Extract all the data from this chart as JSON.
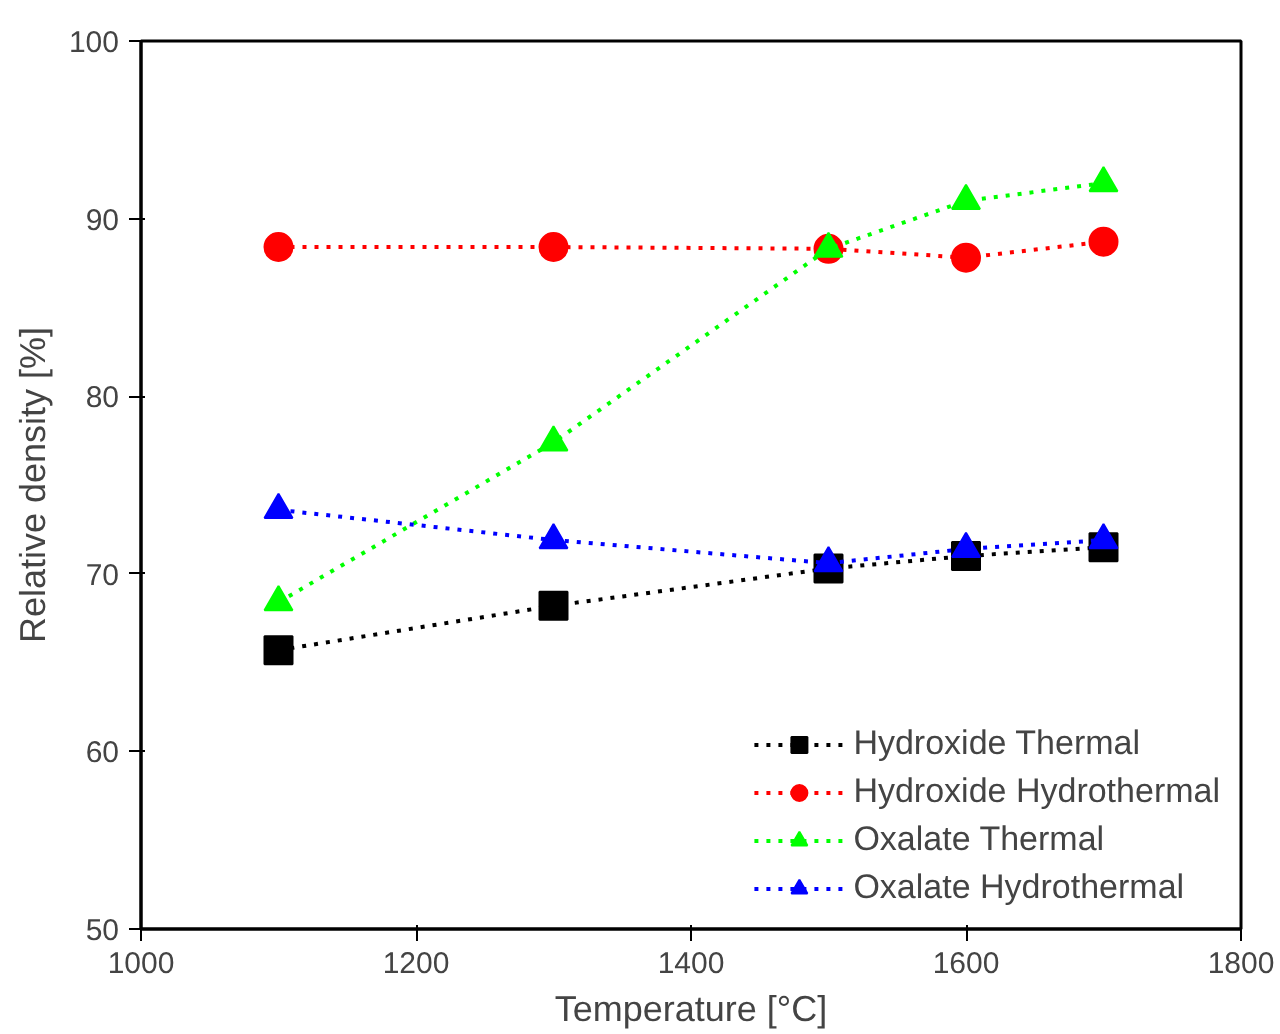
{
  "chart_data": {
    "type": "line",
    "xlabel": "Temperature [°C]",
    "ylabel": "Relative density [%]",
    "x": [
      1100,
      1300,
      1500,
      1600,
      1700
    ],
    "xlim": [
      1000,
      1800
    ],
    "xticks": [
      1000,
      1200,
      1400,
      1600,
      1800
    ],
    "ylim": [
      50,
      100
    ],
    "yticks": [
      50,
      60,
      70,
      80,
      90,
      100
    ],
    "grid": false,
    "legend": "bottom right",
    "line_style": "dotted",
    "series": [
      {
        "name": "Hydroxide Thermal",
        "color": "#000000",
        "marker": "square",
        "values": [
          65.7,
          68.2,
          70.3,
          71.0,
          71.5
        ]
      },
      {
        "name": "Hydroxide Hydrothermal",
        "color": "#ff0000",
        "marker": "circle",
        "values": [
          88.4,
          88.4,
          88.3,
          87.8,
          88.7
        ]
      },
      {
        "name": "Oxalate Thermal",
        "color": "#00ff00",
        "marker": "triangle",
        "values": [
          68.4,
          77.4,
          88.3,
          91.0,
          92.0
        ]
      },
      {
        "name": "Oxalate Hydrothermal",
        "color": "#0000ff",
        "marker": "triangle",
        "values": [
          73.6,
          71.9,
          70.6,
          71.4,
          71.9
        ]
      }
    ]
  }
}
